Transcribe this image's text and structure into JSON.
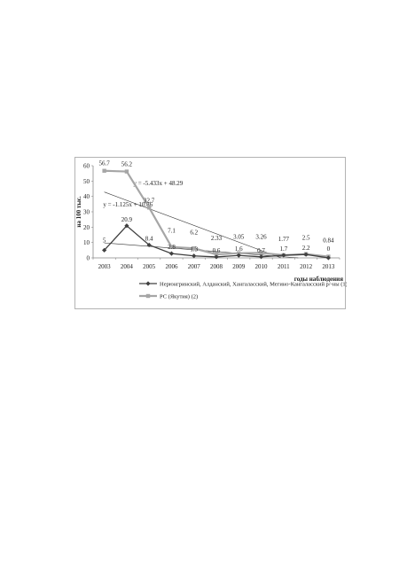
{
  "chart_data": {
    "type": "line",
    "ylabel": "на 100 тыс.",
    "xlabel": "годы наблюдения",
    "ylim": [
      0,
      60
    ],
    "yticks": [
      0,
      10,
      20,
      30,
      40,
      50,
      60
    ],
    "categories": [
      "2003",
      "2004",
      "2005",
      "2006",
      "2007",
      "2008",
      "2009",
      "2010",
      "2011",
      "2012",
      "2013"
    ],
    "series": [
      {
        "name": "Нерюнгринский, Алданский, Хангаласский, Мегино-Кангаласский р/-ны (1)",
        "values": [
          5,
          20.9,
          8.4,
          2.8,
          1.3,
          0.6,
          1.6,
          0.7,
          1.7,
          2.2,
          0
        ],
        "labels": [
          "5",
          "20.9",
          "8.4",
          "2.8",
          "1.3",
          "0.6",
          "1.6",
          "0.7",
          "1.7",
          "2.2",
          "0"
        ],
        "color": "#404040",
        "marker": "diamond",
        "trendline": {
          "slope": -1.125,
          "intercept": 10.86,
          "label": "y = -1.125x + 10.86"
        }
      },
      {
        "name": "РС (Якутия) (2)",
        "values": [
          56.7,
          56.2,
          32.7,
          7.1,
          6.2,
          2.33,
          3.05,
          3.26,
          1.77,
          2.5,
          0.84
        ],
        "labels": [
          "56.7",
          "56.2",
          "32.7",
          "7.1",
          "6.2",
          "2.33",
          "3.05",
          "3.26",
          "1.77",
          "2.5",
          "0.84"
        ],
        "color": "#a6a6a6",
        "marker": "square",
        "trendline": {
          "slope": -5.433,
          "intercept": 48.29,
          "label": "y = -5.433x + 48.29"
        }
      }
    ],
    "grid": false,
    "legend_position": "bottom"
  }
}
